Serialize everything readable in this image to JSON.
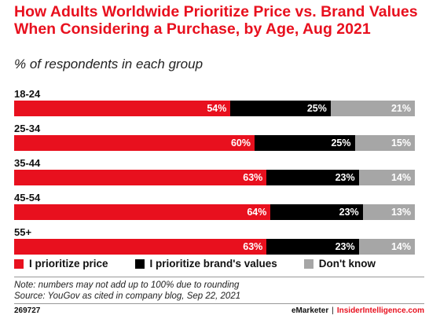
{
  "chart_data": {
    "type": "bar",
    "orientation": "horizontal-stacked-100",
    "title": "How Adults Worldwide Prioritize Price vs. Brand Values When Considering a Purchase, by Age, Aug 2021",
    "subtitle": "% of respondents in each group",
    "categories": [
      "18-24",
      "25-34",
      "35-44",
      "45-54",
      "55+"
    ],
    "series": [
      {
        "name": "I prioritize price",
        "color": "#e8101e",
        "label_color": "#ffffff",
        "values": [
          54,
          60,
          63,
          64,
          63
        ]
      },
      {
        "name": "I prioritize brand's values",
        "color": "#000000",
        "label_color": "#ffffff",
        "values": [
          25,
          25,
          23,
          23,
          23
        ]
      },
      {
        "name": "Don't know",
        "color": "#a6a6a6",
        "label_color": "#ffffff",
        "values": [
          21,
          15,
          14,
          13,
          14
        ]
      }
    ],
    "value_suffix": "%",
    "legend_position": "bottom"
  },
  "footer": {
    "note": "Note: numbers may not add up to 100% due to rounding",
    "source": "Source: YouGov as cited in company blog, Sep 22, 2021",
    "chart_id": "269727",
    "brand_left": "eMarketer",
    "separator": "|",
    "brand_right": "InsiderIntelligence.com"
  }
}
